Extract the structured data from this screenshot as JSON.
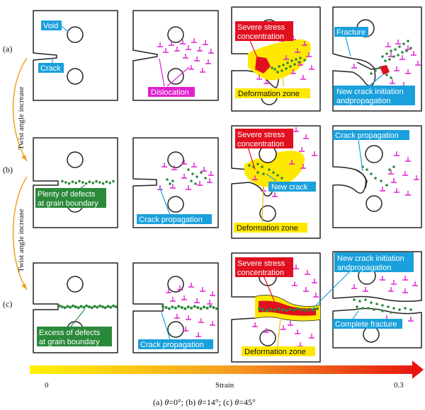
{
  "rows": [
    {
      "label": "(a)"
    },
    {
      "label": "(b)"
    },
    {
      "label": "(c)"
    }
  ],
  "twist_labels": [
    "Twist angle increase",
    "Twist angle increase"
  ],
  "annotations": {
    "a1_void": "Void",
    "a1_crack": "Crack",
    "a2_dislocation": "Dislocation",
    "a3_severe_line1": "Severe stress",
    "a3_severe_line2": "concentration",
    "a3_deformation": "Deformation zone",
    "a4_fracture": "Fracture",
    "a4_newcrack_line1": "New crack initiation",
    "a4_newcrack_line2": "andpropagation",
    "b1_defects_line1": "Plenty of defects",
    "b1_defects_line2": "at grain boundary",
    "b2_crackprop": "Crack propagation",
    "b3_severe_line1": "Severe stress",
    "b3_severe_line2": "concentration",
    "b3_newcrack": "New crack",
    "b3_deformation": "Deformation zone",
    "b4_crackprop": "Crack propagation",
    "c1_defects_line1": "Excess of defects",
    "c1_defects_line2": "at grain boundary",
    "c2_crackprop": "Crack propagation",
    "c3_severe_line1": "Severe stress",
    "c3_severe_line2": "concentration",
    "c3_deformation": "Deformation zone",
    "c4_newcrack_line1": "New crack initiation",
    "c4_newcrack_line2": "andpropagation",
    "c4_fracture": "Complete fracture"
  },
  "strain": {
    "label": "Strain",
    "min": "0",
    "max": "0.3"
  },
  "caption": {
    "a_pre": "(a) ",
    "a_val": "=0°; ",
    "b_pre": "(b) ",
    "b_val": "=14°; ",
    "c_pre": "(c) ",
    "c_val": "=45°",
    "symbol": "θ"
  },
  "colors": {
    "blue": "#1aa0dc",
    "magenta": "#e020d0",
    "red": "#e01020",
    "yellow": "#ffe800",
    "green": "#2a8a3a",
    "orange": "#f0a020"
  }
}
